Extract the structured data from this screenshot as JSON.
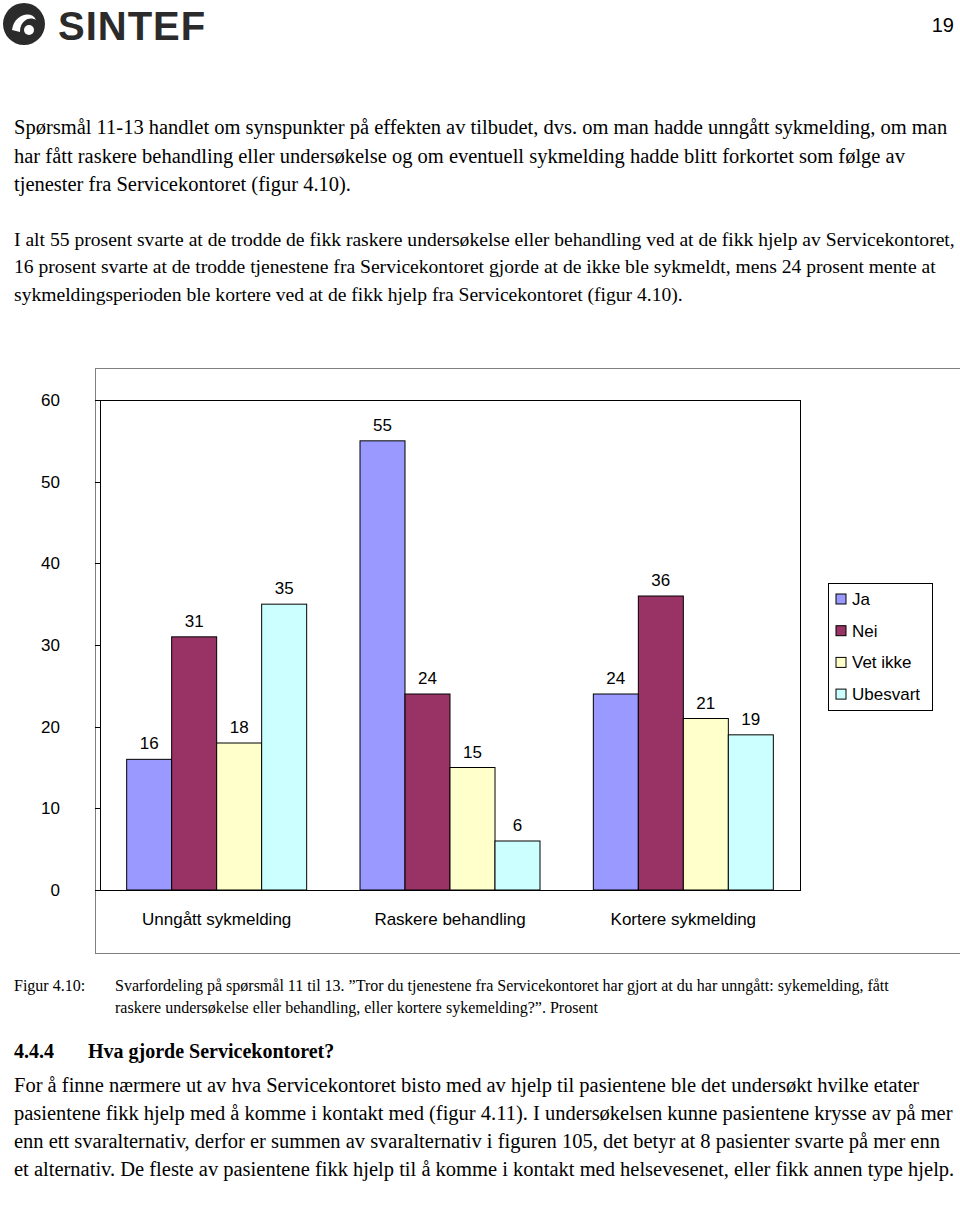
{
  "header": {
    "logo": "SINTEF",
    "page_number": "19"
  },
  "paragraphs": [
    "Spørsmål 11-13 handlet om synspunkter på effekten av tilbudet, dvs. om man hadde unngått sykmelding, om man har fått raskere behandling eller undersøkelse og om eventuell sykmelding hadde blitt forkortet som følge av tjenester fra Servicekontoret (figur 4.10).",
    "I alt 55 prosent svarte at de trodde de fikk raskere undersøkelse eller behandling ved at de fikk hjelp av Servicekontoret, 16 prosent svarte at de trodde tjenestene fra Servicekontoret gjorde at de ikke ble sykmeldt, mens 24 prosent mente at sykmeldingsperioden ble kortere ved at de fikk hjelp fra Servicekontoret (figur 4.10)."
  ],
  "chart_data": {
    "type": "bar",
    "categories": [
      "Unngått sykmelding",
      "Raskere behandling",
      "Kortere sykmelding"
    ],
    "series": [
      {
        "name": "Ja",
        "color": "#9999ff",
        "values": [
          16,
          55,
          24
        ]
      },
      {
        "name": "Nei",
        "color": "#993366",
        "values": [
          31,
          24,
          36
        ]
      },
      {
        "name": "Vet ikke",
        "color": "#ffffcc",
        "values": [
          18,
          15,
          21
        ]
      },
      {
        "name": "Ubesvart",
        "color": "#ccffff",
        "values": [
          35,
          6,
          19
        ]
      }
    ],
    "ylim": [
      0,
      60
    ],
    "yticks": [
      0,
      10,
      20,
      30,
      40,
      50,
      60
    ],
    "grid": false,
    "legend": "right",
    "data_labels": true
  },
  "figure": {
    "label": "Figur 4.10:",
    "caption": "Svarfordeling på spørsmål 11 til 13. ”Tror du tjenestene fra Servicekontoret har gjort at du har unngått: sykemelding, fått raskere undersøkelse eller behandling, eller kortere sykemelding?”. Prosent"
  },
  "section": {
    "number": "4.4.4",
    "title": "Hva gjorde Servicekontoret?",
    "paragraph": "For å finne nærmere ut av hva Servicekontoret bisto med av hjelp til pasientene ble det undersøkt hvilke etater pasientene fikk hjelp med å komme i kontakt med (figur 4.11). I undersøkelsen kunne pasientene krysse av på mer enn ett svaralternativ, derfor er summen av svaralternativ i figuren 105, det betyr at 8 pasienter svarte på mer enn et alternativ. De fleste av pasientene fikk hjelp til å komme i kontakt med helsevesenet, eller fikk annen type hjelp."
  }
}
